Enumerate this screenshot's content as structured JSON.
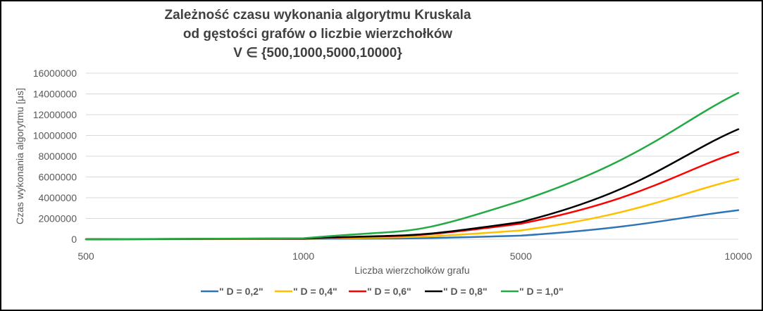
{
  "chart_data": {
    "type": "line",
    "title_lines": [
      "Zależność czasu wykonania algorytmu Kruskala",
      "od gęstości grafów o liczbie wierzchołków",
      "V ∈ {500,1000,5000,10000}"
    ],
    "xlabel": "Liczba wierzchołków grafu",
    "ylabel": "Czas wykonania algorytmu [μs]",
    "categories": [
      "500",
      "1000",
      "5000",
      "10000"
    ],
    "ylim": [
      0,
      16000000
    ],
    "yticks": [
      "0",
      "2000000",
      "4000000",
      "6000000",
      "8000000",
      "10000000",
      "12000000",
      "14000000",
      "16000000"
    ],
    "grid": true,
    "legend_position": "bottom",
    "smooth": true,
    "series": [
      {
        "name": "\" D = 0,2\"",
        "color": "#2E75B6",
        "values": [
          1000,
          20000,
          350000,
          2800000
        ]
      },
      {
        "name": "\" D = 0,4\"",
        "color": "#FFC000",
        "values": [
          1500,
          40000,
          850000,
          5800000
        ]
      },
      {
        "name": "\" D = 0,6\"",
        "color": "#FF0000",
        "values": [
          2000,
          60000,
          1500000,
          8400000
        ]
      },
      {
        "name": "\" D = 0,8\"",
        "color": "#000000",
        "values": [
          2500,
          70000,
          1650000,
          10600000
        ]
      },
      {
        "name": "\" D = 1,0\"",
        "color": "#22AA44",
        "values": [
          3000,
          90000,
          3700000,
          14100000
        ]
      }
    ]
  }
}
